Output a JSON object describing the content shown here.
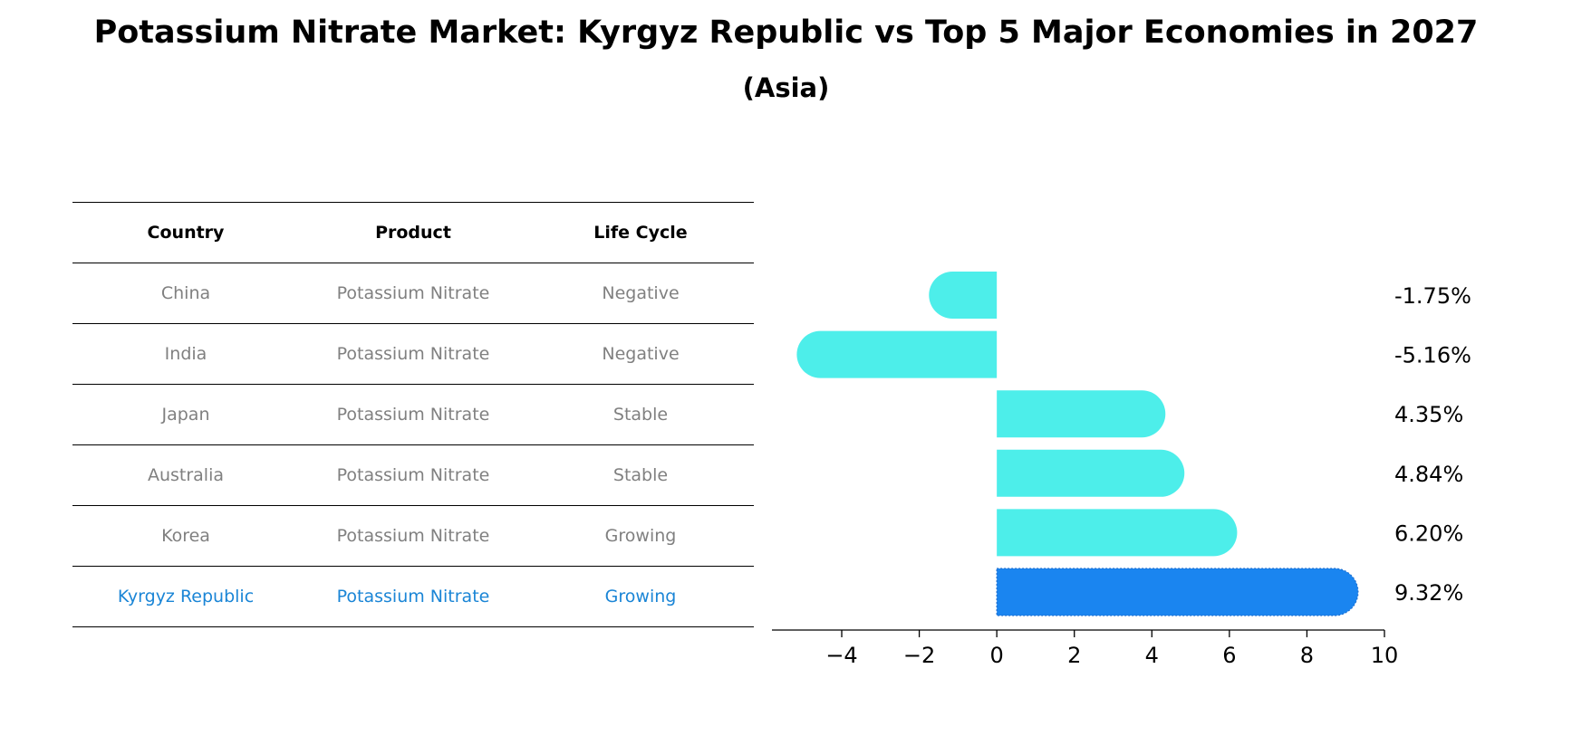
{
  "title": "Potassium Nitrate Market: Kyrgyz Republic vs Top 5 Major Economies in 2027",
  "subtitle": "(Asia)",
  "table": {
    "headers": [
      "Country",
      "Product",
      "Life Cycle"
    ],
    "rows": [
      {
        "country": "China",
        "product": "Potassium Nitrate",
        "life_cycle": "Negative"
      },
      {
        "country": "India",
        "product": "Potassium Nitrate",
        "life_cycle": "Negative"
      },
      {
        "country": "Japan",
        "product": "Potassium Nitrate",
        "life_cycle": "Stable"
      },
      {
        "country": "Australia",
        "product": "Potassium Nitrate",
        "life_cycle": "Stable"
      },
      {
        "country": "Korea",
        "product": "Potassium Nitrate",
        "life_cycle": "Growing"
      },
      {
        "country": "Kyrgyz Republic",
        "product": "Potassium Nitrate",
        "life_cycle": "Growing"
      }
    ]
  },
  "colors": {
    "bar": "#4deeea",
    "highlight_bar": "#1a85f0",
    "highlight_text": "#1a85d6",
    "muted_text": "#808080"
  },
  "chart_data": {
    "type": "bar",
    "orientation": "horizontal",
    "categories": [
      "China",
      "India",
      "Japan",
      "Australia",
      "Korea",
      "Kyrgyz Republic"
    ],
    "values": [
      -1.75,
      -5.16,
      4.35,
      4.84,
      6.2,
      9.32
    ],
    "value_labels": [
      "-1.75%",
      "-5.16%",
      "4.35%",
      "4.84%",
      "6.20%",
      "9.32%"
    ],
    "highlight": "Kyrgyz Republic",
    "xlim": [
      -5.8,
      10
    ],
    "xticks": [
      -4,
      -2,
      0,
      2,
      4,
      6,
      8,
      10
    ],
    "xtick_labels": [
      "−4",
      "−2",
      "0",
      "2",
      "4",
      "6",
      "8",
      "10"
    ]
  }
}
